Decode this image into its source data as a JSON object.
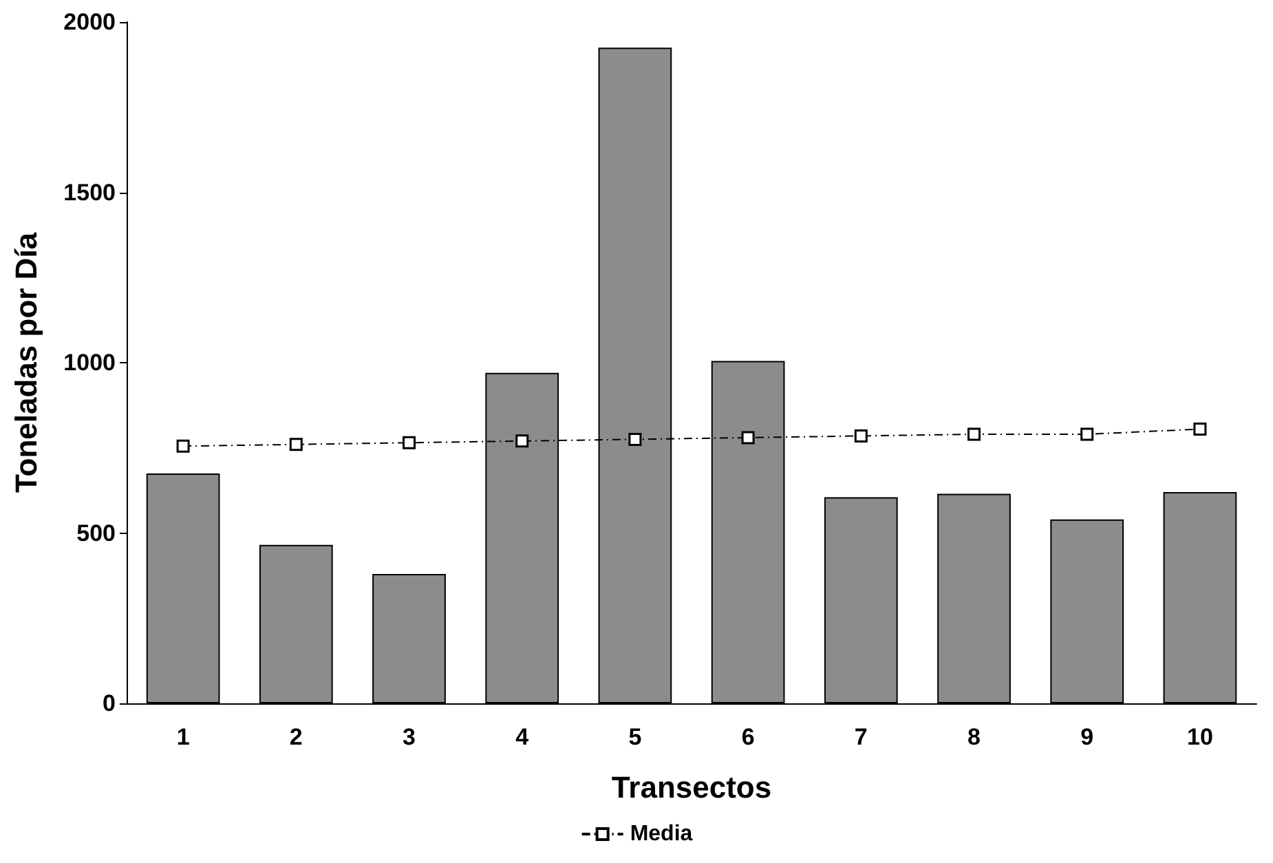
{
  "chart_data": {
    "type": "bar",
    "xlabel": "Transectos",
    "ylabel": "Toneladas por Día",
    "categories": [
      "1",
      "2",
      "3",
      "4",
      "5",
      "6",
      "7",
      "8",
      "9",
      "10"
    ],
    "series": [
      {
        "color": "#8c8c8c",
        "values": [
          675,
          465,
          380,
          970,
          1925,
          1005,
          605,
          615,
          540,
          620
        ]
      },
      {
        "type": "line",
        "name": "Media",
        "color": "#000000",
        "values": [
          755,
          760,
          765,
          770,
          775,
          780,
          785,
          790,
          790,
          805
        ]
      }
    ],
    "ylim": [
      0,
      2000
    ],
    "yticks": [
      0,
      500,
      1000,
      1500,
      2000
    ],
    "grid": false,
    "legend": "bottom",
    "marker": "square",
    "line_style": "dashed"
  }
}
